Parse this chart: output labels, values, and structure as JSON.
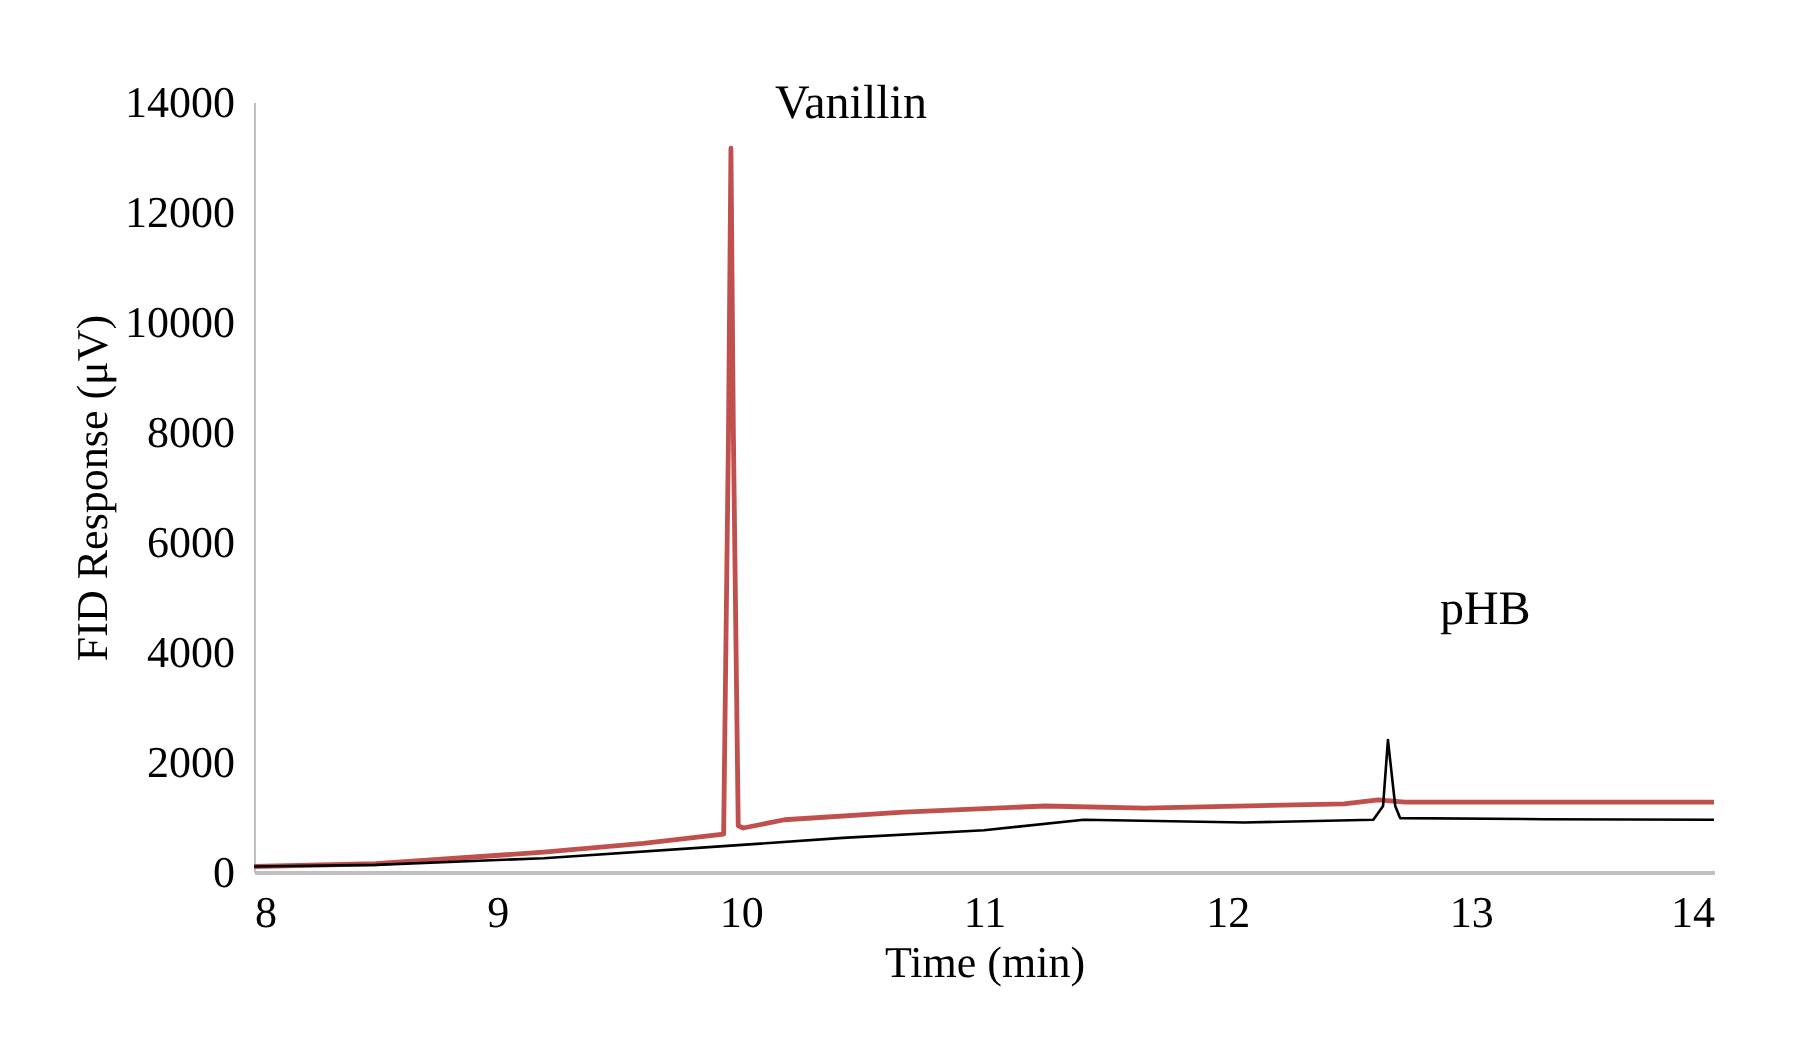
{
  "chart_data": {
    "type": "line",
    "xlabel": "Time (min)",
    "ylabel": "FID Response (μV)",
    "xlim": [
      8,
      14
    ],
    "xticks": [
      8,
      9,
      10,
      11,
      12,
      13,
      14
    ],
    "ylim": [
      0,
      14000
    ],
    "yticks": [
      0,
      2000,
      4000,
      6000,
      8000,
      10000,
      12000,
      14000
    ],
    "grid": false,
    "marker": "none",
    "line_style": "solid",
    "series": [
      {
        "color": "#c0504d",
        "x": [
          8.0,
          8.5,
          9.19,
          9.6,
          9.93,
          9.95,
          9.96,
          9.97,
          9.99,
          10.01,
          10.18,
          10.67,
          11.25,
          11.66,
          12.48,
          12.62,
          12.73,
          13.3,
          14.0
        ],
        "values": [
          100,
          150,
          360,
          520,
          690,
          8000,
          13160,
          8000,
          840,
          800,
          950,
          1090,
          1200,
          1160,
          1240,
          1310,
          1270,
          1270,
          1270
        ]
      },
      {
        "color": "#000000",
        "x": [
          8.0,
          8.5,
          9.19,
          9.93,
          10.42,
          11.0,
          11.41,
          12.07,
          12.6,
          12.64,
          12.66,
          12.69,
          12.71,
          13.3,
          14.0
        ],
        "values": [
          100,
          130,
          250,
          470,
          620,
          760,
          950,
          900,
          950,
          1200,
          2400,
          1200,
          980,
          960,
          950
        ]
      }
    ],
    "annotations": [
      {
        "text": "Vanillin",
        "x": 9.96,
        "y": 13160
      },
      {
        "text": "pHB",
        "x": 12.66,
        "y": 2400
      }
    ]
  }
}
